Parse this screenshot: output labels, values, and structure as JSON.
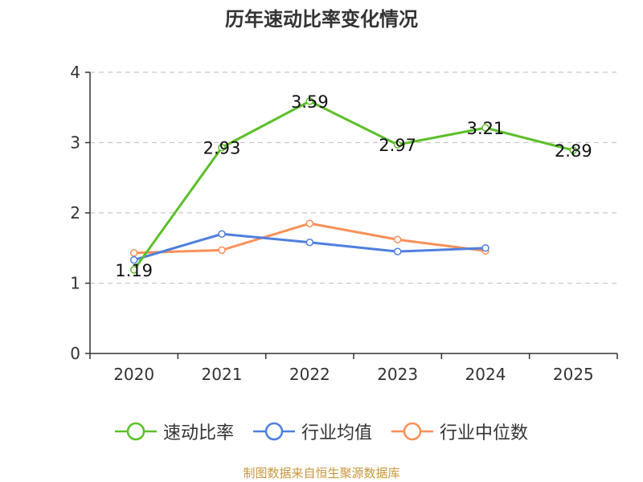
{
  "chart_data": {
    "type": "line",
    "title": "历年速动比率变化情况",
    "categories": [
      "2020",
      "2021",
      "2022",
      "2023",
      "2024",
      "2025"
    ],
    "ylim": [
      0,
      4
    ],
    "yticks": [
      0,
      1,
      2,
      3,
      4
    ],
    "grid": true,
    "legend_position": "bottom",
    "series": [
      {
        "name": "速动比率",
        "color": "#5cbf2a",
        "values": [
          1.19,
          2.93,
          3.59,
          2.97,
          3.21,
          2.89
        ],
        "show_labels": true
      },
      {
        "name": "行业均值",
        "color": "#4f7fdf",
        "values": [
          1.33,
          1.7,
          1.58,
          1.45,
          1.5,
          null
        ],
        "show_labels": false
      },
      {
        "name": "行业中位数",
        "color": "#f89058",
        "values": [
          1.43,
          1.47,
          1.85,
          1.62,
          1.46,
          null
        ],
        "show_labels": false
      }
    ]
  },
  "source_note": "制图数据来自恒生聚源数据库"
}
